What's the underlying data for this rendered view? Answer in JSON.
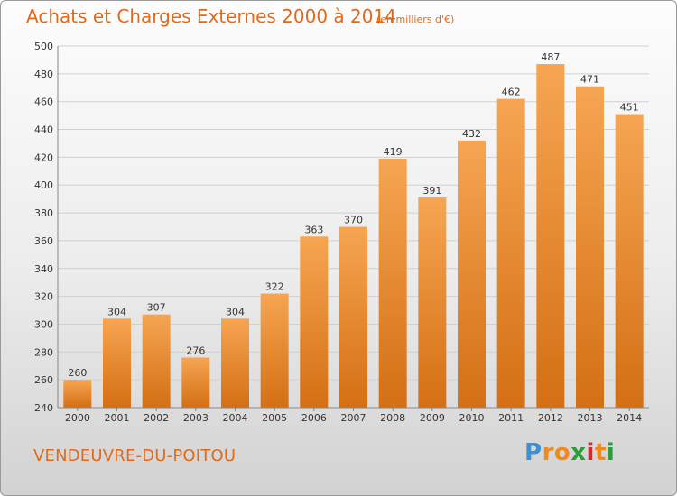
{
  "title": "Achats et Charges Externes 2000 à 2014",
  "unit": "(en milliers d'€)",
  "commune": "VENDEUVRE-DU-POITOU",
  "logo": {
    "letters": [
      "P",
      "r",
      "o",
      "x",
      "i",
      "t",
      "i"
    ],
    "colors": [
      "#3f8fd1",
      "#f08a1c",
      "#f08a1c",
      "#2c9b3a",
      "#d4272f",
      "#f08a1c",
      "#2c9b3a"
    ]
  },
  "colors": {
    "accent": "#e06a1b",
    "bar_light": "#f6a552",
    "bar_dark": "#d46f14"
  },
  "chart_data": {
    "type": "bar",
    "title": "Achats et Charges Externes 2000 à 2014",
    "categories": [
      "2000",
      "2001",
      "2002",
      "2003",
      "2004",
      "2005",
      "2006",
      "2007",
      "2008",
      "2009",
      "2010",
      "2011",
      "2012",
      "2013",
      "2014"
    ],
    "values": [
      260,
      304,
      307,
      276,
      304,
      322,
      363,
      370,
      419,
      391,
      432,
      462,
      487,
      471,
      451
    ],
    "ylim": [
      240,
      500
    ],
    "yticks": [
      240,
      260,
      280,
      300,
      320,
      340,
      360,
      380,
      400,
      420,
      440,
      460,
      480,
      500
    ],
    "grid": true
  }
}
